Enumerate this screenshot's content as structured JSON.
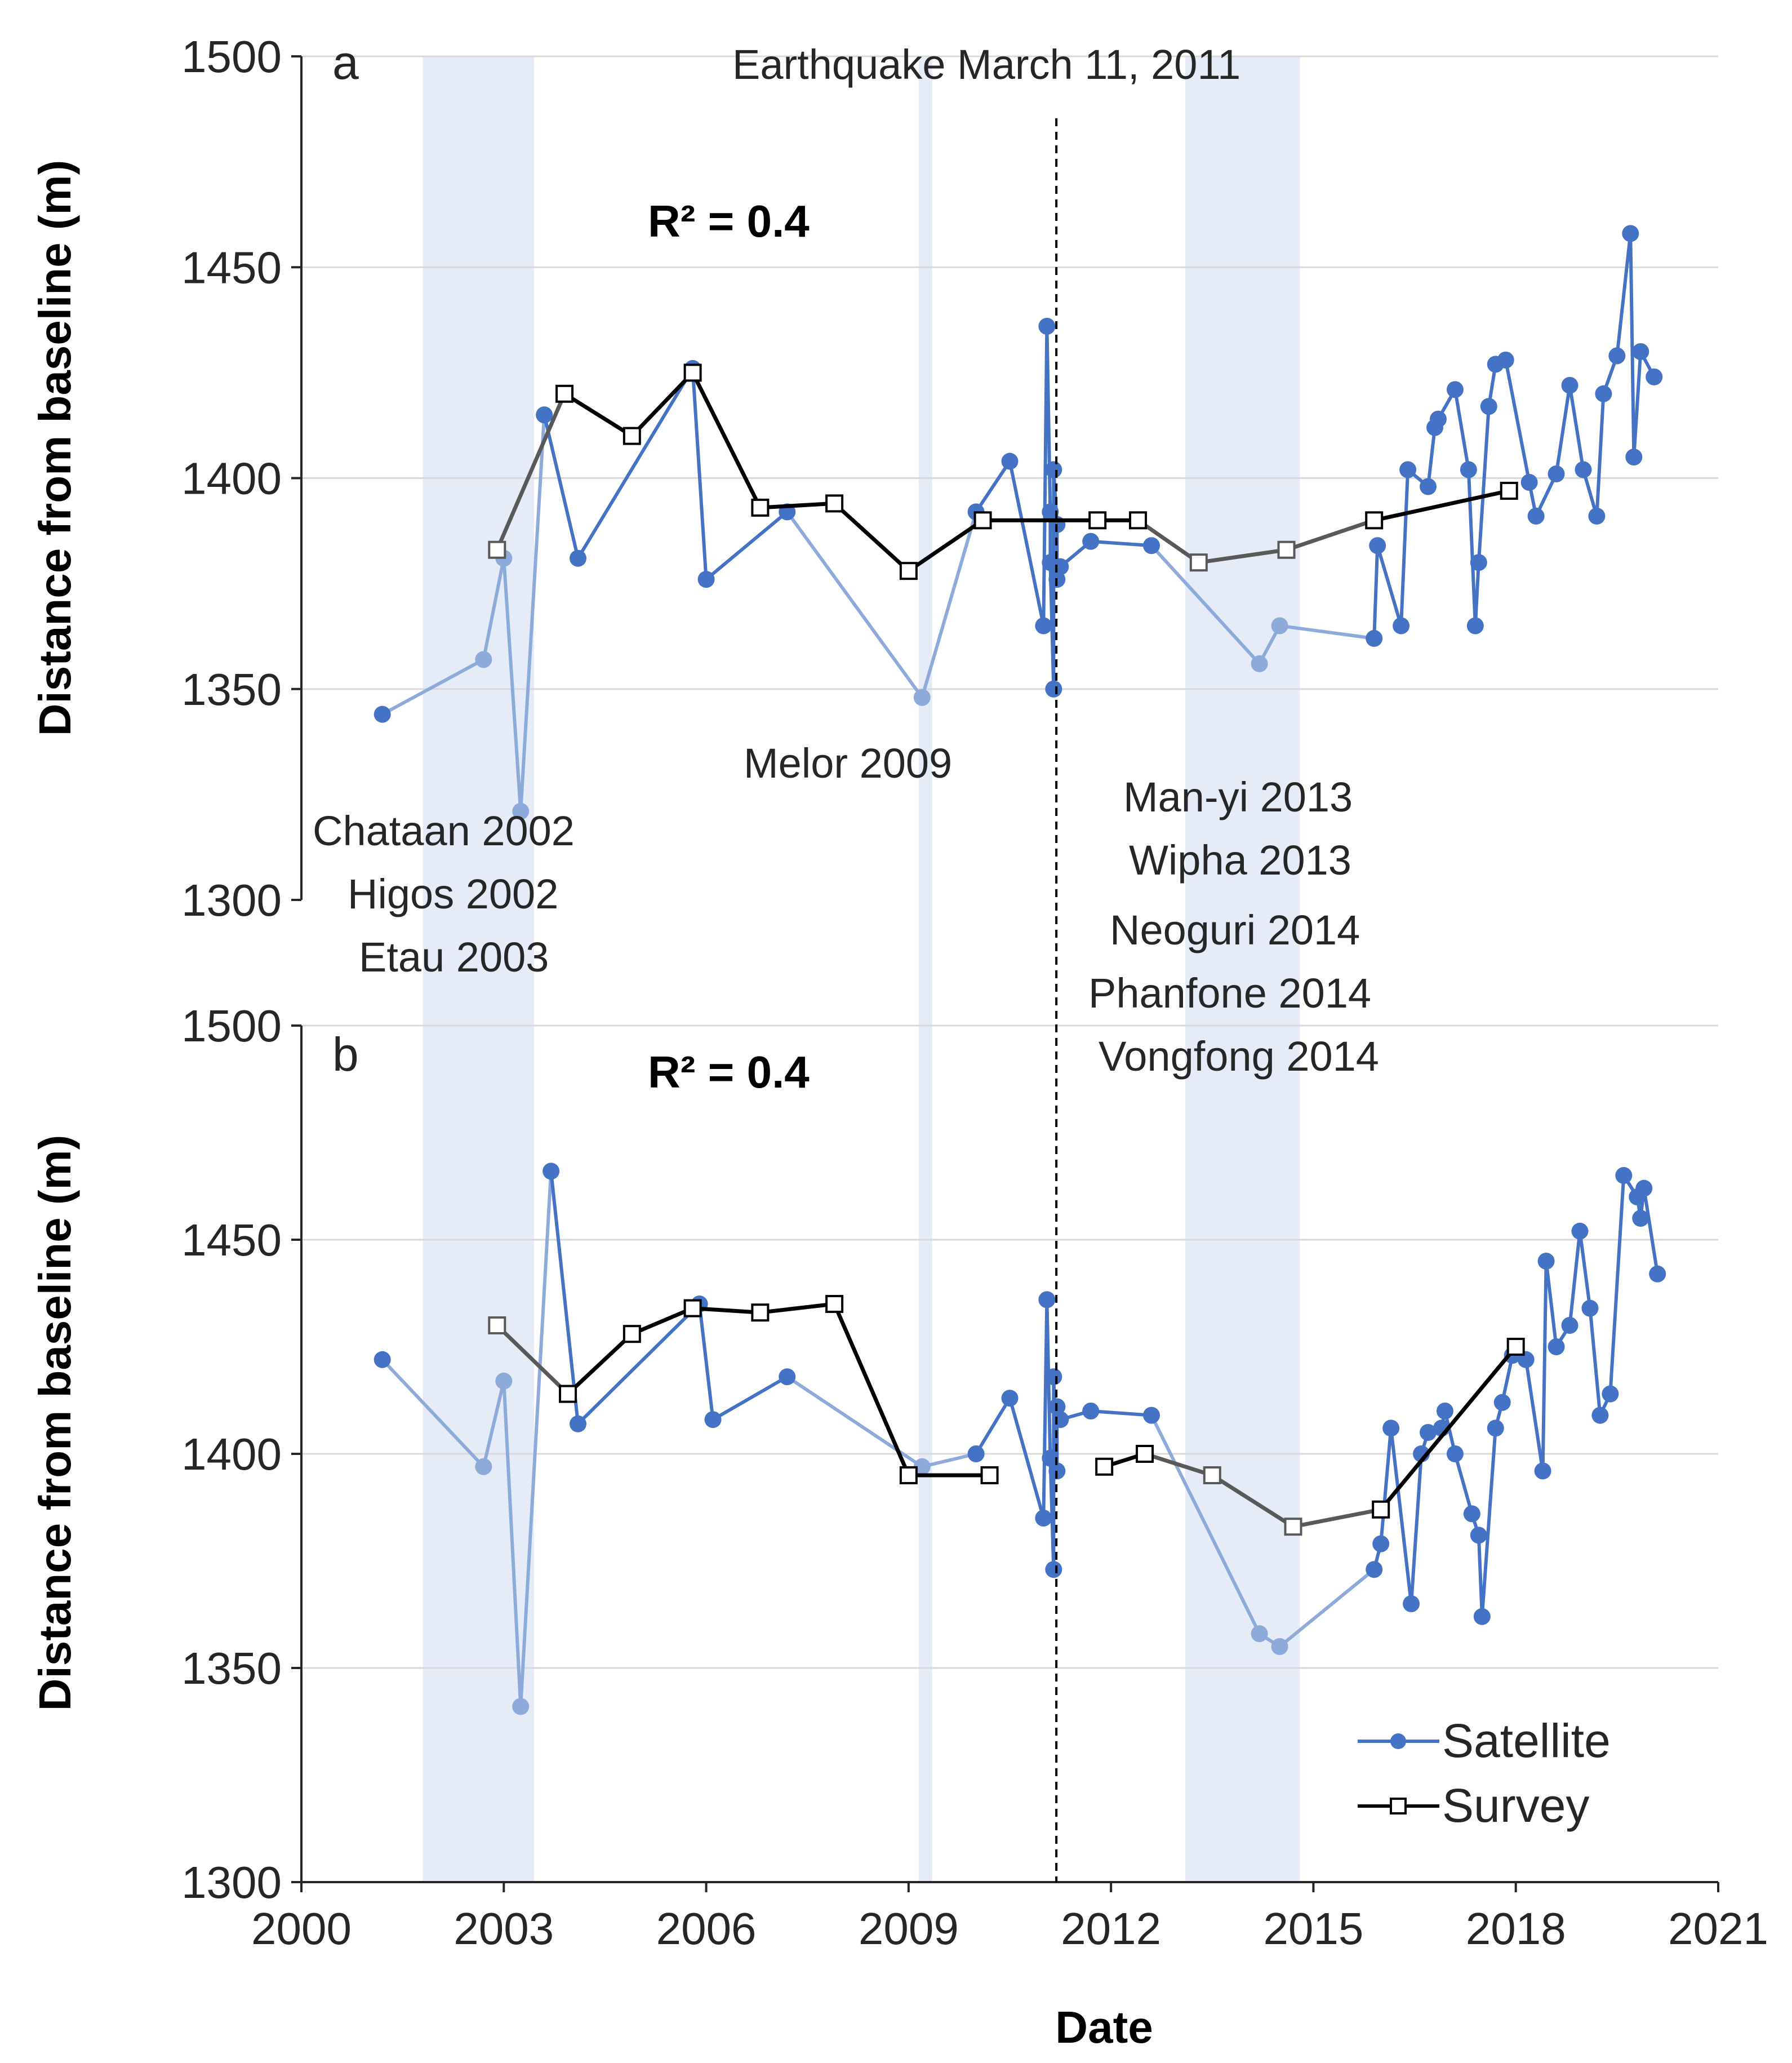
{
  "chart_data": [
    {
      "panel": "a",
      "type": "line",
      "xlabel": "Date",
      "ylabel": "Distance from baseline (m)",
      "ylim": [
        1300,
        1500
      ],
      "yticks": [
        1300,
        1350,
        1400,
        1450,
        1500
      ],
      "xlim": [
        2000,
        2021
      ],
      "xticks": [
        2000,
        2003,
        2006,
        2009,
        2012,
        2015,
        2018,
        2021
      ],
      "annotation": "R² = 0.4",
      "series": [
        {
          "name": "Satellite",
          "x": [
            2001.2,
            2002.7,
            2003.0,
            2003.25,
            2003.6,
            2004.1,
            2005.8,
            2006.0,
            2007.2,
            2009.2,
            2010.0,
            2010.5,
            2011.0,
            2011.05,
            2011.1,
            2011.1,
            2011.15,
            2011.15,
            2011.2,
            2011.2,
            2011.25,
            2011.7,
            2012.6,
            2014.2,
            2014.5,
            2015.9,
            2015.95,
            2016.3,
            2016.4,
            2016.7,
            2016.8,
            2016.85,
            2017.1,
            2017.3,
            2017.4,
            2017.45,
            2017.6,
            2017.7,
            2017.85,
            2018.2,
            2018.3,
            2018.6,
            2018.8,
            2019.0,
            2019.2,
            2019.3,
            2019.5,
            2019.7,
            2019.75,
            2019.85,
            2020.05
          ],
          "values": [
            1344,
            1357,
            1381,
            1321,
            1415,
            1381,
            1426,
            1376,
            1392,
            1348,
            1392,
            1404,
            1365,
            1436,
            1392,
            1380,
            1350,
            1402,
            1389,
            1376,
            1379,
            1385,
            1384,
            1356,
            1365,
            1362,
            1384,
            1365,
            1402,
            1398,
            1412,
            1414,
            1421,
            1402,
            1365,
            1380,
            1417,
            1427,
            1428,
            1399,
            1391,
            1401,
            1422,
            1402,
            1391,
            1420,
            1429,
            1458,
            1405,
            1430,
            1424
          ]
        },
        {
          "name": "Survey",
          "x": [
            2002.9,
            2003.9,
            2004.9,
            2005.8,
            2006.8,
            2007.9,
            2009.0,
            2010.1,
            2011.8,
            2012.4,
            2013.3,
            2014.6,
            2015.9,
            2017.9
          ],
          "values": [
            1383,
            1420,
            1410,
            1425,
            1393,
            1394,
            1378,
            1390,
            1390,
            1390,
            1380,
            1383,
            1390,
            1397
          ]
        }
      ]
    },
    {
      "panel": "b",
      "type": "line",
      "xlabel": "Date",
      "ylabel": "Distance from baseline (m)",
      "ylim": [
        1300,
        1500
      ],
      "yticks": [
        1300,
        1350,
        1400,
        1450,
        1500
      ],
      "xlim": [
        2000,
        2021
      ],
      "xticks": [
        2000,
        2003,
        2006,
        2009,
        2012,
        2015,
        2018,
        2021
      ],
      "annotation": "R² = 0.4",
      "series": [
        {
          "name": "Satellite",
          "x": [
            2001.2,
            2002.7,
            2003.0,
            2003.25,
            2003.7,
            2004.1,
            2005.9,
            2006.1,
            2007.2,
            2009.2,
            2010.0,
            2010.5,
            2011.0,
            2011.05,
            2011.1,
            2011.15,
            2011.15,
            2011.2,
            2011.2,
            2011.25,
            2011.7,
            2012.6,
            2014.2,
            2014.5,
            2015.9,
            2016.0,
            2016.15,
            2016.45,
            2016.6,
            2016.7,
            2016.9,
            2016.95,
            2017.1,
            2017.35,
            2017.45,
            2017.5,
            2017.7,
            2017.8,
            2017.95,
            2018.15,
            2018.4,
            2018.45,
            2018.6,
            2018.8,
            2018.95,
            2019.1,
            2019.25,
            2019.4,
            2019.6,
            2019.8,
            2019.85,
            2019.9,
            2020.1
          ],
          "values": [
            1422,
            1397,
            1417,
            1341,
            1466,
            1407,
            1435,
            1408,
            1418,
            1397,
            1400,
            1413,
            1385,
            1436,
            1399,
            1373,
            1418,
            1396,
            1411,
            1408,
            1410,
            1409,
            1358,
            1355,
            1373,
            1379,
            1406,
            1365,
            1400,
            1405,
            1406,
            1410,
            1400,
            1386,
            1381,
            1362,
            1406,
            1412,
            1423,
            1422,
            1396,
            1445,
            1425,
            1430,
            1452,
            1434,
            1409,
            1414,
            1465,
            1460,
            1455,
            1462,
            1442
          ]
        },
        {
          "name": "Survey",
          "x": [
            2002.9,
            2003.95,
            2004.9,
            2005.8,
            2006.8,
            2007.9,
            2009.0,
            2010.2,
            2011.9,
            2012.5,
            2013.5,
            2014.7,
            2016.0,
            2018.0
          ],
          "values": [
            1430,
            1414,
            1428,
            1434,
            1433,
            1435,
            1395,
            1395,
            1397,
            1400,
            1395,
            1383,
            1387,
            1425
          ]
        }
      ]
    }
  ],
  "labels": {
    "panel_a": "a",
    "panel_b": "b",
    "r2_a": "R² = 0.4",
    "r2_b": "R² = 0.4",
    "earthquake": "Earthquake March 11, 2011",
    "melor": "Melor 2009",
    "typhoons_2002": [
      "Chataan 2002",
      "Higos 2002",
      "Etau 2003"
    ],
    "typhoons_2013": [
      "Man-yi 2013",
      "Wipha 2013",
      "Neoguri 2014",
      "Phanfone 2014",
      "Vongfong 2014"
    ],
    "ylabel_a": "Distance from baseline (m)",
    "ylabel_b": "Distance from baseline (m)",
    "xlabel": "Date",
    "legend_satellite": "Satellite",
    "legend_survey": "Survey"
  },
  "shaded_periods": [
    {
      "name": "2002-2003 typhoons",
      "start": 2001.8,
      "end": 2003.45
    },
    {
      "name": "Melor 2009",
      "start": 2009.15,
      "end": 2009.35
    },
    {
      "name": "2013-2014 typhoons",
      "start": 2013.1,
      "end": 2014.8
    }
  ],
  "earthquake_date": 2011.19,
  "colors": {
    "satellite": "#4472c4",
    "satellite_light": "#8eaadb",
    "survey": "#000000",
    "survey_gray": "#595959",
    "shade": "#dae3f3",
    "grid": "#d9d9d9",
    "axis": "#262626"
  }
}
